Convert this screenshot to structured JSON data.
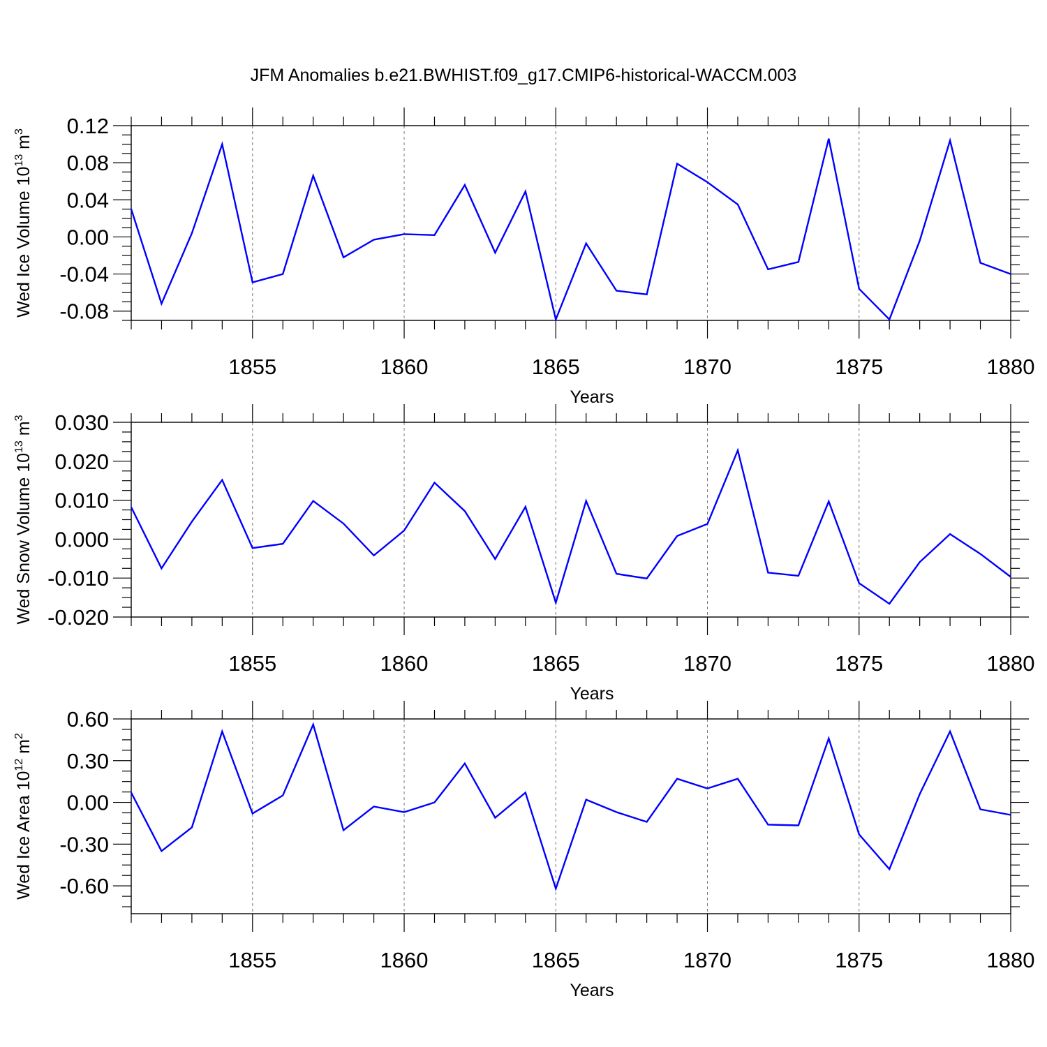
{
  "chart_data": {
    "title": "JFM Anomalies b.e21.BWHIST.f09_g17.CMIP6-historical-WACCM.003",
    "panels": [
      {
        "type": "line",
        "ylabel": "Wed Ice Volume 10",
        "ylabel_exp": "13",
        "ylabel_unit": " m",
        "ylabel_unit_exp": "3",
        "xlabel": "Years",
        "xlim": [
          1851,
          1880
        ],
        "ylim": [
          -0.09,
          0.12
        ],
        "yticks": [
          -0.08,
          -0.04,
          0.0,
          0.04,
          0.08,
          0.12
        ],
        "ytick_labels": [
          "-0.08",
          "-0.04",
          "0.00",
          "0.04",
          "0.08",
          "0.12"
        ],
        "xticks": [
          1855,
          1860,
          1865,
          1870,
          1875,
          1880
        ],
        "xtick_labels": [
          "1855",
          "1860",
          "1865",
          "1870",
          "1875",
          "1880"
        ],
        "grid": "vertical dashed at major x ticks",
        "series": [
          {
            "color": "#0000ff",
            "x": [
              1851,
              1852,
              1853,
              1854,
              1855,
              1856,
              1857,
              1858,
              1859,
              1860,
              1861,
              1862,
              1863,
              1864,
              1865,
              1866,
              1867,
              1868,
              1869,
              1870,
              1871,
              1872,
              1873,
              1874,
              1875,
              1876,
              1877,
              1878,
              1879,
              1880
            ],
            "y": [
              0.03,
              -0.072,
              0.004,
              0.1,
              -0.049,
              -0.04,
              0.066,
              -0.022,
              -0.003,
              0.003,
              0.002,
              0.056,
              -0.017,
              0.049,
              -0.089,
              -0.007,
              -0.058,
              -0.062,
              0.079,
              0.059,
              0.035,
              -0.035,
              -0.027,
              0.106,
              -0.056,
              -0.089,
              -0.004,
              0.104,
              -0.028,
              -0.04
            ]
          }
        ]
      },
      {
        "type": "line",
        "ylabel": "Wed Snow Volume 10",
        "ylabel_exp": "13",
        "ylabel_unit": " m",
        "ylabel_unit_exp": "3",
        "xlabel": "Years",
        "xlim": [
          1851,
          1880
        ],
        "ylim": [
          -0.02,
          0.03
        ],
        "yticks": [
          -0.02,
          -0.01,
          0.0,
          0.01,
          0.02,
          0.03
        ],
        "ytick_labels": [
          "-0.020",
          "-0.010",
          "0.000",
          "0.010",
          "0.020",
          "0.030"
        ],
        "xticks": [
          1855,
          1860,
          1865,
          1870,
          1875,
          1880
        ],
        "xtick_labels": [
          "1855",
          "1860",
          "1865",
          "1870",
          "1875",
          "1880"
        ],
        "grid": "vertical dashed at major x ticks",
        "series": [
          {
            "color": "#0000ff",
            "x": [
              1851,
              1852,
              1853,
              1854,
              1855,
              1856,
              1857,
              1858,
              1859,
              1860,
              1861,
              1862,
              1863,
              1864,
              1865,
              1866,
              1867,
              1868,
              1869,
              1870,
              1871,
              1872,
              1873,
              1874,
              1875,
              1876,
              1877,
              1878,
              1879,
              1880
            ],
            "y": [
              0.0082,
              -0.0075,
              0.0045,
              0.0152,
              -0.0023,
              -0.0012,
              0.0098,
              0.004,
              -0.0042,
              0.0022,
              0.0145,
              0.0072,
              -0.0051,
              0.0083,
              -0.0163,
              0.0098,
              -0.0089,
              -0.0101,
              0.0008,
              0.0039,
              0.0228,
              -0.0086,
              -0.0094,
              0.0097,
              -0.0113,
              -0.0166,
              -0.0059,
              0.0013,
              -0.0038,
              -0.0097
            ]
          }
        ]
      },
      {
        "type": "line",
        "ylabel": "Wed Ice Area 10",
        "ylabel_exp": "12",
        "ylabel_unit": " m",
        "ylabel_unit_exp": "2",
        "xlabel": "Years",
        "xlim": [
          1851,
          1880
        ],
        "ylim": [
          -0.8,
          0.6
        ],
        "yticks": [
          -0.6,
          -0.3,
          0.0,
          0.3,
          0.6
        ],
        "ytick_labels": [
          "-0.60",
          "-0.30",
          "0.00",
          "0.30",
          "0.60"
        ],
        "xticks": [
          1855,
          1860,
          1865,
          1870,
          1875,
          1880
        ],
        "xtick_labels": [
          "1855",
          "1860",
          "1865",
          "1870",
          "1875",
          "1880"
        ],
        "grid": "vertical dashed at major x ticks",
        "series": [
          {
            "color": "#0000ff",
            "x": [
              1851,
              1852,
              1853,
              1854,
              1855,
              1856,
              1857,
              1858,
              1859,
              1860,
              1861,
              1862,
              1863,
              1864,
              1865,
              1866,
              1867,
              1868,
              1869,
              1870,
              1871,
              1872,
              1873,
              1874,
              1875,
              1876,
              1877,
              1878,
              1879,
              1880
            ],
            "y": [
              0.07,
              -0.35,
              -0.18,
              0.51,
              -0.08,
              0.05,
              0.56,
              -0.2,
              -0.03,
              -0.07,
              0.0,
              0.28,
              -0.11,
              0.07,
              -0.62,
              0.02,
              -0.07,
              -0.14,
              0.17,
              0.1,
              0.17,
              -0.16,
              -0.165,
              0.46,
              -0.23,
              -0.48,
              0.06,
              0.51,
              -0.05,
              -0.09
            ]
          }
        ]
      }
    ]
  }
}
